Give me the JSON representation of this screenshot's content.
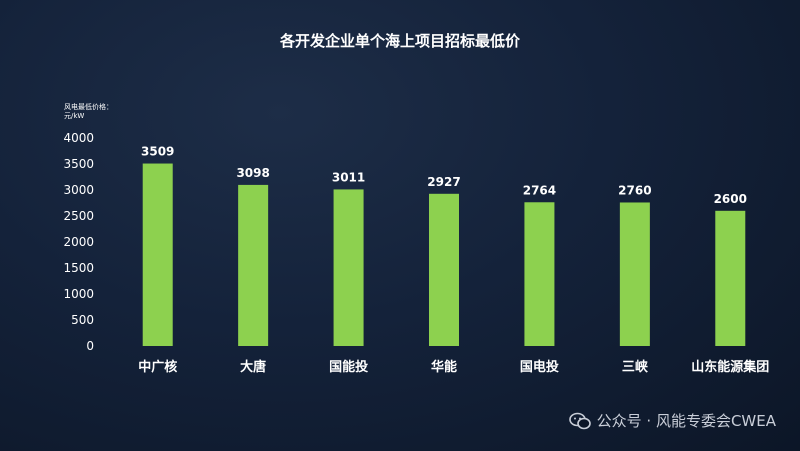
{
  "chart_data": {
    "type": "bar",
    "title": "各开发企业单个海上项目招标最低价",
    "ylabel": "风电最低价格：\n元/kW",
    "categories": [
      "中广核",
      "大唐",
      "国能投",
      "华能",
      "国电投",
      "三峡",
      "山东能源集团"
    ],
    "values": [
      3509,
      3098,
      3011,
      2927,
      2764,
      2760,
      2600
    ],
    "ylim": [
      0,
      4000
    ],
    "yticks": [
      0,
      500,
      1000,
      1500,
      2000,
      2500,
      3000,
      3500,
      4000
    ],
    "grid": false,
    "legend": "none",
    "bar_color": "#8dd14f"
  },
  "watermark": "公众号 · 风能专委会CWEA"
}
